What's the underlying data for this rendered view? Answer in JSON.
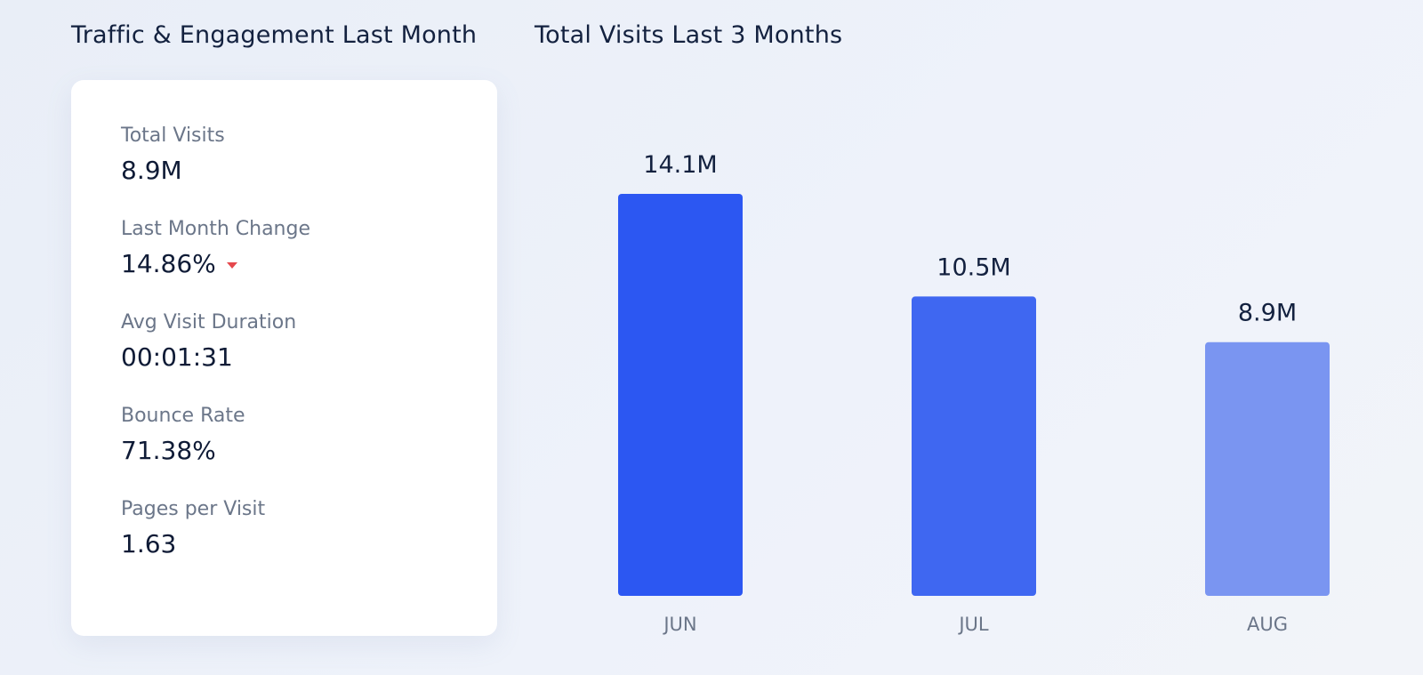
{
  "left_panel": {
    "title": "Traffic & Engagement Last Month",
    "metrics": [
      {
        "label": "Total Visits",
        "value": "8.9M"
      },
      {
        "label": "Last Month Change",
        "value": "14.86%",
        "trend_icon": "triangle-down-icon",
        "trend_color": "#e5484d"
      },
      {
        "label": "Avg Visit Duration",
        "value": "00:01:31"
      },
      {
        "label": "Bounce Rate",
        "value": "71.38%"
      },
      {
        "label": "Pages per Visit",
        "value": "1.63"
      }
    ]
  },
  "right_panel": {
    "title": "Total Visits Last 3 Months"
  },
  "chart_data": {
    "type": "bar",
    "categories": [
      "JUN",
      "JUL",
      "AUG"
    ],
    "values": [
      14.1,
      10.5,
      8.9
    ],
    "value_labels": [
      "14.1M",
      "10.5M",
      "8.9M"
    ],
    "unit": "M",
    "ylim": [
      0,
      14.1
    ],
    "colors": [
      "#2c57f2",
      "#3f67f1",
      "#7a95f1"
    ],
    "grid": false,
    "legend": "none"
  }
}
